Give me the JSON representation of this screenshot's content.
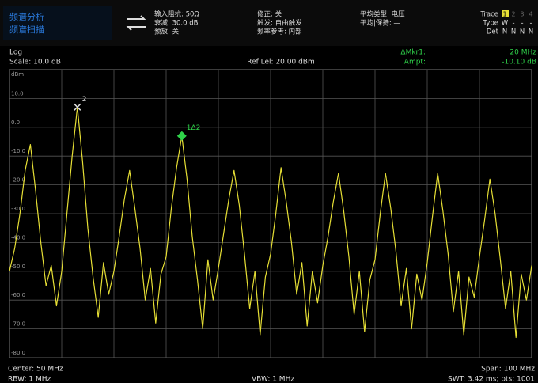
{
  "status": {
    "mode": "频谱分析",
    "sweep": "频谱扫描"
  },
  "header": [
    [
      "输入阻抗: 50Ω",
      "衰减: 30.0 dB",
      "预放: 关"
    ],
    [
      "修正: 关",
      "触发: 自由触发",
      "频率参考: 内部"
    ],
    [
      "平均类型: 电压",
      "平均|保持: —"
    ]
  ],
  "trace_panel": {
    "labels": [
      "Trace",
      "Type",
      "Det"
    ],
    "traces": [
      "1",
      "2",
      "3",
      "4"
    ],
    "types": [
      "W",
      "-",
      "-",
      "-"
    ],
    "dets": [
      "N",
      "N",
      "N",
      "N"
    ]
  },
  "readout": {
    "scale_type": "Log",
    "scale": "Scale: 10.0 dB",
    "ref_level": "Ref Lel: 20.00 dBm",
    "delta_marker_label": "ΔMkr1:",
    "delta_marker_value": "20 MHz",
    "ampt_label": "Ampt:",
    "ampt_value": "-10.10 dB"
  },
  "footer": {
    "center": "Center: 50 MHz",
    "rbw": "RBW: 1 MHz",
    "vbw": "VBW: 1 MHz",
    "span": "Span: 100 MHz",
    "swt": "SWT: 3.42 ms; pts: 1001"
  },
  "chart_data": {
    "type": "line",
    "y_unit": "dBm",
    "xlim": [
      0,
      100
    ],
    "ylim": [
      -80,
      20
    ],
    "yticks": [
      {
        "value": 10,
        "label": "10.0"
      },
      {
        "value": 0,
        "label": "0.0"
      },
      {
        "value": -10,
        "label": "-10.0"
      },
      {
        "value": -20,
        "label": "-20.0"
      },
      {
        "value": -30,
        "label": "-30.0"
      },
      {
        "value": -40,
        "label": "-40.0"
      },
      {
        "value": -50,
        "label": "-50.0"
      },
      {
        "value": -60,
        "label": "-60.0"
      },
      {
        "value": -70,
        "label": "-70.0"
      },
      {
        "value": -80,
        "label": "-80.0"
      }
    ],
    "grid": true,
    "x": [
      0,
      1,
      2,
      3,
      4,
      5,
      6,
      7,
      8,
      9,
      10,
      11,
      12,
      13,
      14,
      15,
      16,
      17,
      18,
      19,
      20,
      21,
      22,
      23,
      24,
      25,
      26,
      27,
      28,
      29,
      30,
      31,
      32,
      33,
      34,
      35,
      36,
      37,
      38,
      39,
      40,
      41,
      42,
      43,
      44,
      45,
      46,
      47,
      48,
      49,
      50,
      51,
      52,
      53,
      54,
      55,
      56,
      57,
      58,
      59,
      60,
      61,
      62,
      63,
      64,
      65,
      66,
      67,
      68,
      69,
      70,
      71,
      72,
      73,
      74,
      75,
      76,
      77,
      78,
      79,
      80,
      81,
      82,
      83,
      84,
      85,
      86,
      87,
      88,
      89,
      90,
      91,
      92,
      93,
      94,
      95,
      96,
      97,
      98,
      99,
      100
    ],
    "series": [
      {
        "color": "#e6df35",
        "values": [
          -50,
          -42,
          -30,
          -15,
          -6,
          -22,
          -40,
          -55,
          -48,
          -62,
          -50,
          -30,
          -10,
          7,
          -12,
          -35,
          -52,
          -66,
          -47,
          -58,
          -50,
          -38,
          -25,
          -15,
          -28,
          -42,
          -60,
          -49,
          -68,
          -51,
          -45,
          -28,
          -14,
          -3,
          -18,
          -38,
          -53,
          -70,
          -46,
          -60,
          -49,
          -37,
          -25,
          -15,
          -27,
          -44,
          -63,
          -50,
          -72,
          -52,
          -44,
          -30,
          -14,
          -26,
          -40,
          -58,
          -47,
          -69,
          -50,
          -61,
          -48,
          -38,
          -26,
          -16,
          -29,
          -45,
          -65,
          -50,
          -71,
          -53,
          -46,
          -30,
          -16,
          -28,
          -43,
          -62,
          -49,
          -70,
          -51,
          -60,
          -47,
          -31,
          -16,
          -29,
          -44,
          -64,
          -50,
          -72,
          -52,
          -59,
          -45,
          -32,
          -18,
          -30,
          -46,
          -63,
          -50,
          -73,
          -51,
          -60,
          -48
        ]
      }
    ],
    "markers": [
      {
        "label": "2",
        "x": 13,
        "y": 7,
        "color": "#dddddd"
      },
      {
        "label": "1Δ2",
        "x": 33,
        "y": -3,
        "color": "#2fd24a"
      }
    ]
  }
}
